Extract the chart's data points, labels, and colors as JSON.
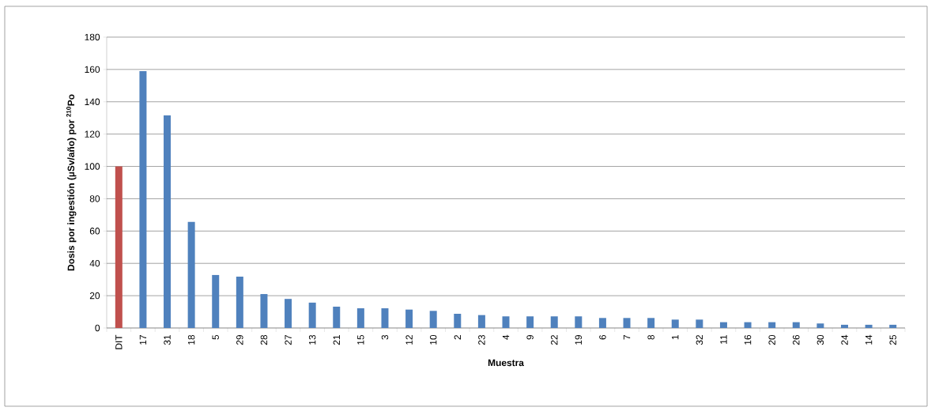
{
  "chart_data": {
    "type": "bar",
    "xlabel": "Muestra",
    "ylabel": "Dosis por ingestión (µSv/año)  por $^{210}$Po",
    "categories": [
      "DIT",
      "17",
      "31",
      "18",
      "5",
      "29",
      "28",
      "27",
      "13",
      "21",
      "15",
      "3",
      "12",
      "10",
      "2",
      "23",
      "4",
      "9",
      "22",
      "19",
      "6",
      "7",
      "8",
      "1",
      "32",
      "11",
      "16",
      "20",
      "26",
      "30",
      "24",
      "14",
      "25"
    ],
    "values": [
      100,
      159,
      131.6,
      65.6,
      32.8,
      31.8,
      21,
      18,
      15.7,
      13.2,
      12.2,
      12.2,
      11.4,
      10.6,
      8.8,
      8,
      7.2,
      7.2,
      7.2,
      7.2,
      6.2,
      6.2,
      6.2,
      5.2,
      5.2,
      3.6,
      3.6,
      3.6,
      3.6,
      2.8,
      2,
      2,
      2
    ],
    "colors": [
      "#c0504d",
      "#4f81bd",
      "#4f81bd",
      "#4f81bd",
      "#4f81bd",
      "#4f81bd",
      "#4f81bd",
      "#4f81bd",
      "#4f81bd",
      "#4f81bd",
      "#4f81bd",
      "#4f81bd",
      "#4f81bd",
      "#4f81bd",
      "#4f81bd",
      "#4f81bd",
      "#4f81bd",
      "#4f81bd",
      "#4f81bd",
      "#4f81bd",
      "#4f81bd",
      "#4f81bd",
      "#4f81bd",
      "#4f81bd",
      "#4f81bd",
      "#4f81bd",
      "#4f81bd",
      "#4f81bd",
      "#4f81bd",
      "#4f81bd",
      "#4f81bd",
      "#4f81bd",
      "#4f81bd"
    ],
    "ylim": [
      0,
      180
    ],
    "yticks": [
      0,
      20,
      40,
      60,
      80,
      100,
      120,
      140,
      160,
      180
    ],
    "grid": "y"
  }
}
